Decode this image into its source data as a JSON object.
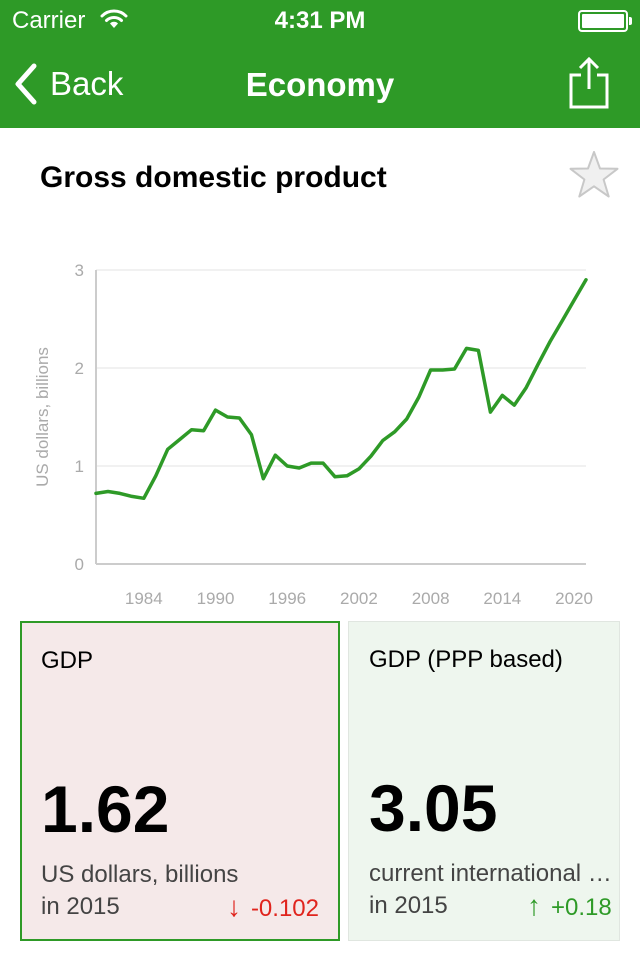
{
  "status_bar": {
    "carrier": "Carrier",
    "time": "4:31 PM"
  },
  "nav": {
    "back_label": "Back",
    "title": "Economy"
  },
  "section": {
    "title": "Gross domestic product"
  },
  "colors": {
    "brand": "#2e9a27",
    "decrease": "#e0241d",
    "increase": "#2e9a27",
    "line": "#2e9a27"
  },
  "chart_data": {
    "type": "line",
    "title": "",
    "xlabel": "",
    "ylabel": "US dollars, billions",
    "xlim": [
      1980,
      2021
    ],
    "ylim": [
      0,
      3
    ],
    "yticks": [
      0,
      1,
      2,
      3
    ],
    "xticks": [
      1984,
      1990,
      1996,
      2002,
      2008,
      2014,
      2020
    ],
    "grid": "horizontal",
    "series": [
      {
        "x": [
          1980,
          1981,
          1982,
          1983,
          1984,
          1985,
          1986,
          1987,
          1988,
          1989,
          1990,
          1991,
          1992,
          1993,
          1994,
          1995,
          1996,
          1997,
          1998,
          1999,
          2000,
          2001,
          2002,
          2003,
          2004,
          2005,
          2006,
          2007,
          2008,
          2009,
          2010,
          2011,
          2012,
          2013,
          2014,
          2015,
          2016,
          2017,
          2018,
          2019,
          2020,
          2021
        ],
        "y": [
          0.72,
          0.74,
          0.72,
          0.69,
          0.67,
          0.9,
          1.17,
          1.27,
          1.37,
          1.36,
          1.57,
          1.5,
          1.49,
          1.32,
          0.87,
          1.11,
          1.0,
          0.98,
          1.03,
          1.03,
          0.89,
          0.9,
          0.97,
          1.1,
          1.26,
          1.35,
          1.48,
          1.7,
          1.98,
          1.98,
          1.99,
          2.2,
          2.18,
          1.55,
          1.72,
          1.62,
          1.8,
          2.04,
          2.27,
          2.48,
          2.69,
          2.9
        ]
      }
    ]
  },
  "cards": [
    {
      "title": "GDP",
      "value": "1.62",
      "unit": "US dollars, billions",
      "year": "in 2015",
      "change": "-0.102",
      "arrow": "↓",
      "selected": true
    },
    {
      "title": "GDP (PPP based)",
      "value": "3.05",
      "unit": "current international dollars, billions",
      "year": "in 2015",
      "change": "+0.18",
      "arrow": "↑",
      "selected": false
    }
  ]
}
